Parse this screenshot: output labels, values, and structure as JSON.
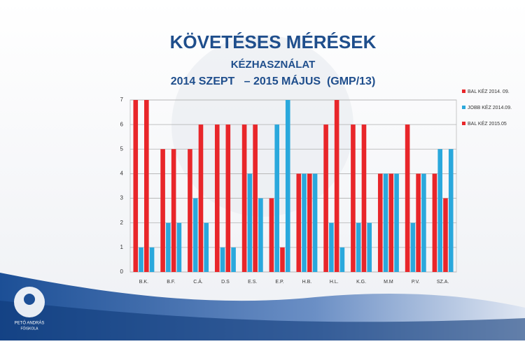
{
  "chart_data": {
    "type": "bar",
    "title": "KÖVETÉSES MÉRÉSEK",
    "subtitle": "KÉZHASZNÁLAT",
    "subtitle2": "2014 SZEPT   – 2015 MÁJUS  (GMP/13)",
    "categories": [
      "B.K.",
      "B.F.",
      "C.Á.",
      "D.S",
      "E.S.",
      "E.P.",
      "H.B.",
      "H.L.",
      "K.G.",
      "M.M",
      "P.V.",
      "SZ.A."
    ],
    "series": [
      {
        "name": "BAL KÉZ 2014. 09.",
        "color": "#e8262a",
        "values": [
          7,
          5,
          5,
          6,
          6,
          3,
          4,
          6,
          6,
          4,
          6,
          4
        ]
      },
      {
        "name": "JOBB KÉZ 2014.09.",
        "color": "#2aa8dc",
        "values": [
          1,
          2,
          3,
          1,
          4,
          6,
          4,
          2,
          2,
          4,
          2,
          5
        ]
      },
      {
        "name": "BAL KÉZ 2015.05",
        "color": "#e8262a",
        "values": [
          7,
          5,
          6,
          6,
          6,
          1,
          4,
          7,
          6,
          4,
          4,
          3
        ]
      },
      {
        "color": "#2aa8dc",
        "values": [
          1,
          2,
          2,
          1,
          3,
          7,
          4,
          1,
          2,
          4,
          4,
          5
        ]
      }
    ],
    "ylim": [
      0,
      7
    ],
    "yticks": [
      0,
      1,
      2,
      3,
      4,
      5,
      6,
      7
    ],
    "grid": true,
    "legend": "right"
  },
  "logo": {
    "line1": "PETŐ ANDRÁS",
    "line2": "FŐISKOLA"
  }
}
